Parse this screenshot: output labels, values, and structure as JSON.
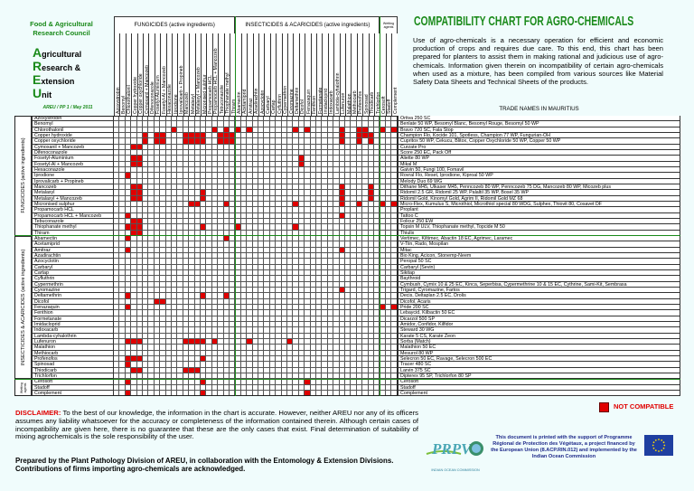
{
  "header": {
    "org_line1": "Food & Agricultural",
    "org_line2": "Research Council",
    "unit_lines": [
      {
        "initial": "A",
        "rest": "gricultural"
      },
      {
        "initial": "R",
        "rest": "esearch &"
      },
      {
        "initial": "E",
        "rest": "xtension"
      },
      {
        "initial": "U",
        "rest": "nit"
      }
    ],
    "reference": "AREU / PP 1 / May 2011",
    "title": "COMPATIBILITY CHART FOR AGRO-CHEMICALS",
    "intro": "Use of agro-chemicals is a necessary operation for efficient and economic production of crops and requires due care. To this end, this chart has been prepared for planters to assist them in making rational and judicious use of agro-chemicals. Information given therein on incompatibility of certain agro-chemicals when used as a mixture, has been compiled from various sources like Material Safety Data Sheets and Technical Sheets of the products.",
    "trade_names_heading": "TRADE NAMES IN MAURITIUS"
  },
  "colors": {
    "incompatible": "#e00000",
    "accent_green": "#1a8a1a",
    "background": "#f0fcfc"
  },
  "chart_data": {
    "type": "table",
    "groups": [
      {
        "label": "FUNGICIDES (active ingredients)",
        "row_label": "FUNGICIDES (active ingredients)",
        "count": 21
      },
      {
        "label": "INSECTICIDES & ACARICIDES (active ingredients)",
        "row_label": "INSECTICIDES & ACARICIDES (active ingredients)",
        "count": 25
      },
      {
        "label": "Wetting agents",
        "row_label": "Wetting agents",
        "count": 3
      }
    ],
    "rows": [
      {
        "name": "Azoxystrobin",
        "trade": "Ortiva 250 SC",
        "incompatible_with": []
      },
      {
        "name": "Benomyl",
        "trade": "Benlate 50 WP, Besomyl Blanc, Besomyl Rouge, Besomyl 50 WP",
        "incompatible_with": []
      },
      {
        "name": "Chlorothalonil",
        "trade": "Bravo 720 SC, Fala Stop",
        "incompatible_with": [
          10,
          17,
          19,
          21,
          23,
          31,
          33,
          39,
          42,
          43,
          46,
          48
        ]
      },
      {
        "name": "Copper hydroxide",
        "trade": "Champion Flo, Kocide 101, Spotless, Champion 77 WP, Fungurian-OH",
        "incompatible_with": [
          5,
          7,
          8,
          12,
          13,
          14,
          15,
          18,
          19,
          20,
          39,
          42,
          43,
          44
        ]
      },
      {
        "name": "Copper oxychloride",
        "trade": "Cupritox 50 WP, Cekucu, Blitox, Copper Oxychloride 50 WP, Copper 50 WP",
        "incompatible_with": [
          5,
          7,
          8,
          12,
          13,
          14,
          15,
          18,
          19,
          20,
          39,
          42,
          44
        ]
      },
      {
        "name": "Cymoxanil + Mancozeb",
        "trade": "Curzate Pro",
        "incompatible_with": [
          3,
          4
        ]
      },
      {
        "name": "Difenoconazole",
        "trade": "Score 250 EC, Pack Off",
        "incompatible_with": []
      },
      {
        "name": "Fosetyl-Aluminium",
        "trade": "Aliette 80 WP",
        "incompatible_with": [
          3,
          4,
          32
        ]
      },
      {
        "name": "Fosetyl-Al + Mancozeb",
        "trade": "Mikal M",
        "incompatible_with": [
          3,
          4,
          32
        ]
      },
      {
        "name": "Hexaconazole",
        "trade": "Gaivin 50, Fungi 100, Fomavil",
        "incompatible_with": []
      },
      {
        "name": "Iprodione",
        "trade": "Rovral Flo, Reset, Iprodione, Kiproal 50 WP",
        "incompatible_with": [
          2
        ]
      },
      {
        "name": "Iprovalicarb + Propineb",
        "trade": "Melody Duo 69 WG",
        "incompatible_with": []
      },
      {
        "name": "Mancozeb",
        "trade": "Dithane M45, Ulkaser M45, Penncozeb 80 WP, Penncozeb 75 DG, Mancozeb 80 WP, Micozeb plus",
        "incompatible_with": [
          3,
          4,
          39,
          44
        ]
      },
      {
        "name": "Metalaxyl",
        "trade": "Ridomil 2.5 GR, Ridomil 25 WP, Palaltil 35 WP, Bosel 35 WP",
        "incompatible_with": [
          3,
          4,
          15,
          39,
          44
        ]
      },
      {
        "name": "Metalaxyl + Mancozeb",
        "trade": "Ridomil Gold, Kinomyl Gold, Agrim II, Ridomil Gold MZ 68",
        "incompatible_with": [
          3,
          4,
          15,
          39,
          44
        ]
      },
      {
        "name": "Micronised sulphur",
        "trade": "Micro-Flex, Kumulus S, Microthiol, Microthiol special 80 WDG, Sulphex, Thiovit 80, Cosavet DF",
        "incompatible_with": [
          13,
          14,
          19,
          31,
          39,
          42,
          46,
          48
        ]
      },
      {
        "name": "Propamocarb HCL",
        "trade": "Proplant",
        "incompatible_with": []
      },
      {
        "name": "Propamocarb HCL + Mancozeb",
        "trade": "Tattoo C",
        "incompatible_with": [
          2,
          39
        ]
      },
      {
        "name": "Tebuconazole",
        "trade": "Folicur 250 EW",
        "incompatible_with": [
          3,
          4
        ]
      },
      {
        "name": "Thiophanate methyl",
        "trade": "Topsin M ULV, Thiophanate methyl, Topcide M 50",
        "incompatible_with": [
          2,
          3,
          4,
          15,
          21,
          31
        ]
      },
      {
        "name": "Thiram",
        "trade": "Thiulix",
        "incompatible_with": [
          3,
          4
        ]
      },
      {
        "name": "Abamectin",
        "trade": "Vertimec, Kiltimec, Abactin 18 EC, Agrimec, Laramec",
        "incompatible_with": [
          2,
          19
        ]
      },
      {
        "name": "Acetamiprid",
        "trade": "V-Tiin, Rado, Mospilan",
        "incompatible_with": []
      },
      {
        "name": "Amitraz",
        "trade": "Mitac",
        "incompatible_with": [
          2,
          39
        ]
      },
      {
        "name": "Azadirachtin",
        "trade": "Bio King, Acicon, Stonemp-Neem",
        "incompatible_with": []
      },
      {
        "name": "Azocyclotin",
        "trade": "Peropal 50 SC",
        "incompatible_with": []
      },
      {
        "name": "Carbaryl",
        "trade": "Carbaryl (Sevin)",
        "incompatible_with": []
      },
      {
        "name": "Cartap",
        "trade": "Sikitap",
        "incompatible_with": []
      },
      {
        "name": "Cyfluthrin",
        "trade": "Baythroid",
        "incompatible_with": []
      },
      {
        "name": "Cypermethrin",
        "trade": "Cymbush, Cymix 10 & 25 EC, Kinca, Seperbisa, Cypermethrine 10 & 15 EC, Cythrine, Sami-Kit, Sembrasa",
        "incompatible_with": []
      },
      {
        "name": "Cyromazine",
        "trade": "Trigard, Cyromazine, Fartos",
        "incompatible_with": [
          39
        ]
      },
      {
        "name": "Deltamethrin",
        "trade": "Decis, Deltaplan 2.5 EC, Drolis",
        "incompatible_with": [
          2,
          15,
          19
        ]
      },
      {
        "name": "Dicofol",
        "trade": "Dicofol, Acaris",
        "incompatible_with": [
          7,
          8
        ]
      },
      {
        "name": "Fenazaquin",
        "trade": "Pride 200 SC",
        "incompatible_with": [
          2,
          46,
          48
        ]
      },
      {
        "name": "Fenthion",
        "trade": "Lebaycid, Kilbactin 50 EC",
        "incompatible_with": []
      },
      {
        "name": "Formetanate",
        "trade": "Dicarzol 500 SP",
        "incompatible_with": []
      },
      {
        "name": "Imidacloprid",
        "trade": "Amidor, Confidor, Kilfidor",
        "incompatible_with": []
      },
      {
        "name": "Indoxacarb",
        "trade": "Steward 30 WG",
        "incompatible_with": []
      },
      {
        "name": "Lambda-cyhalothrin",
        "trade": "Karate 5 CS, Karate Zeon",
        "incompatible_with": []
      },
      {
        "name": "Lufenuron",
        "trade": "Sorba (Match)",
        "incompatible_with": [
          2,
          3,
          4,
          12,
          13,
          14,
          15,
          17,
          23,
          30
        ]
      },
      {
        "name": "Malathion",
        "trade": "Malathion 50 EC",
        "incompatible_with": []
      },
      {
        "name": "Methiocarb",
        "trade": "Mesurol 80 WP",
        "incompatible_with": []
      },
      {
        "name": "Profenofos",
        "trade": "Selecron 50 EC, Ravage, Selecron 500 EC",
        "incompatible_with": [
          2,
          3,
          4,
          15
        ]
      },
      {
        "name": "Spinosad",
        "trade": "Tracer 480 SC",
        "incompatible_with": [
          2
        ]
      },
      {
        "name": "Thiodicarb",
        "trade": "Larvin 375 SC",
        "incompatible_with": [
          3,
          4,
          12,
          13,
          14
        ]
      },
      {
        "name": "Trichlorfon",
        "trade": "Dipterex 95 SP, Trichlorfon 80 SP",
        "incompatible_with": []
      },
      {
        "name": "Cerosoft",
        "trade": "Cerosoft",
        "incompatible_with": [
          2,
          15,
          33
        ]
      },
      {
        "name": "Stadoff",
        "trade": "Stadoff",
        "incompatible_with": []
      },
      {
        "name": "Complement",
        "trade": "Complement",
        "incompatible_with": [
          2,
          15,
          33
        ]
      }
    ]
  },
  "legend": {
    "label": "NOT COMPATIBLE"
  },
  "footer": {
    "disclaimer_label": "DISCLAIMER:",
    "disclaimer_text": " To the best of our knowledge, the information in the chart is accurate. However, neither AREU nor any of its officers assumes any liability whatsoever for the accuracy or completeness of the information contained therein. Although certain cases of incompatibility are given here, there is no guarantee that these are the only cases that exist. Final determination of suitability of mixing agrochemicals is the sole responsibility of the user.",
    "prepared_line1": "Prepared by the Plant Pathology Division of AREU, in collaboration with the Entomology & Extension Divisions.",
    "prepared_line2": "Contributions of firms importing agro-chemicals are acknowledged.",
    "prpv_logo_text": "PRPV",
    "prpv_caption": "INDIAN OCEAN COMMISSION",
    "support_text": "This document is printed with the support of Programme Régional de Protection des Végétaux, a project financed by the European Union (8.ACP.RIN.012) and implemented by the Indian Ocean Commission"
  }
}
